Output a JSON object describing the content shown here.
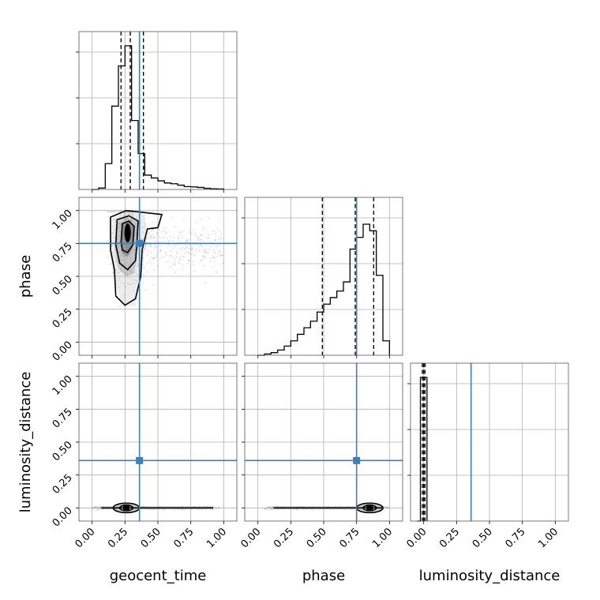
{
  "chart_data": {
    "type": "corner",
    "parameters": [
      "geocent_time",
      "phase",
      "luminosity_distance"
    ],
    "tick_labels": [
      "0.00",
      "0.25",
      "0.50",
      "0.75",
      "1.00"
    ],
    "axis_range": [
      -0.1,
      1.1
    ],
    "grid": true,
    "truths": {
      "geocent_time": 0.36,
      "phase": 0.75,
      "luminosity_distance": 0.36
    },
    "quantile_lines": {
      "geocent_time": [
        0.22,
        0.29,
        0.39
      ],
      "phase": [
        0.49,
        0.74,
        0.88
      ],
      "luminosity_distance": [
        -0.01,
        0.0,
        0.01
      ]
    },
    "histograms": {
      "geocent_time": {
        "bin_edges": [
          0.0,
          0.05,
          0.1,
          0.15,
          0.2,
          0.25,
          0.3,
          0.35,
          0.4,
          0.45,
          0.5,
          0.55,
          0.6,
          0.65,
          0.7,
          0.75,
          0.8,
          0.85,
          0.9,
          0.95,
          1.0
        ],
        "counts": [
          0.0,
          0.01,
          0.18,
          0.58,
          0.86,
          1.0,
          0.48,
          0.25,
          0.1,
          0.08,
          0.06,
          0.045,
          0.04,
          0.03,
          0.02,
          0.018,
          0.014,
          0.008,
          0.005,
          0.003
        ]
      },
      "phase": {
        "bin_edges": [
          0.0,
          0.05,
          0.1,
          0.15,
          0.2,
          0.25,
          0.3,
          0.35,
          0.4,
          0.45,
          0.5,
          0.55,
          0.6,
          0.65,
          0.7,
          0.75,
          0.8,
          0.85,
          0.9,
          0.95,
          1.0
        ],
        "counts": [
          0.0,
          0.01,
          0.02,
          0.04,
          0.07,
          0.11,
          0.16,
          0.21,
          0.26,
          0.33,
          0.39,
          0.44,
          0.49,
          0.56,
          0.81,
          0.9,
          1.0,
          0.95,
          0.61,
          0.11
        ]
      },
      "luminosity_distance": {
        "bin_edges": [
          -0.05,
          -0.025,
          0.0,
          0.025
        ],
        "counts": [
          0.0,
          1.0,
          1.0
        ]
      }
    },
    "contours": {
      "geocent_time-phase": {
        "center": [
          0.27,
          0.78
        ]
      },
      "geocent_time-luminosity_distance": {
        "center": [
          0.26,
          0.0
        ]
      },
      "phase-luminosity_distance": {
        "center": [
          0.85,
          0.0
        ]
      }
    },
    "axis_labels": {
      "bottom": [
        "geocent_time",
        "phase",
        "luminosity_distance"
      ],
      "left": [
        "phase",
        "luminosity_distance"
      ]
    }
  }
}
